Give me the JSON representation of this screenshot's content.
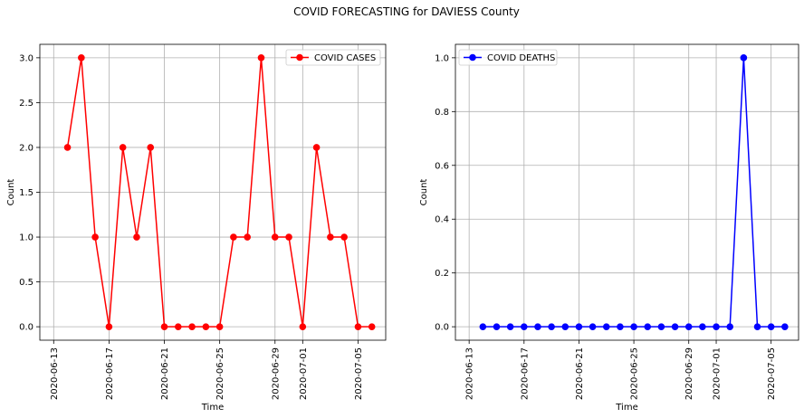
{
  "figure_title": "COVID FORECASTING for DAVIESS County",
  "chart_data": [
    {
      "type": "line",
      "xlabel": "Time",
      "ylabel": "Count",
      "x_tick_labels": [
        "2020-06-13",
        "2020-06-17",
        "2020-06-21",
        "2020-06-25",
        "2020-06-29",
        "2020-07-01",
        "2020-07-05"
      ],
      "y_tick_labels": [
        "0.0",
        "0.5",
        "1.0",
        "1.5",
        "2.0",
        "2.5",
        "3.0"
      ],
      "ylim": [
        -0.15,
        3.15
      ],
      "grid": true,
      "legend_position": "top-right",
      "series": [
        {
          "name": "COVID CASES",
          "color": "#ff0000",
          "x": [
            "2020-06-14",
            "2020-06-15",
            "2020-06-16",
            "2020-06-17",
            "2020-06-18",
            "2020-06-19",
            "2020-06-20",
            "2020-06-21",
            "2020-06-22",
            "2020-06-23",
            "2020-06-24",
            "2020-06-25",
            "2020-06-26",
            "2020-06-27",
            "2020-06-28",
            "2020-06-29",
            "2020-06-30",
            "2020-07-01",
            "2020-07-02",
            "2020-07-03",
            "2020-07-04",
            "2020-07-05",
            "2020-07-06"
          ],
          "values": [
            2,
            3,
            1,
            0,
            2,
            1,
            2,
            0,
            0,
            0,
            0,
            0,
            1,
            1,
            3,
            1,
            1,
            0,
            2,
            1,
            1,
            0,
            0
          ]
        }
      ]
    },
    {
      "type": "line",
      "xlabel": "Time",
      "ylabel": "Count",
      "x_tick_labels": [
        "2020-06-13",
        "2020-06-17",
        "2020-06-21",
        "2020-06-25",
        "2020-06-29",
        "2020-07-01",
        "2020-07-05"
      ],
      "y_tick_labels": [
        "0.0",
        "0.2",
        "0.4",
        "0.6",
        "0.8",
        "1.0"
      ],
      "ylim": [
        -0.05,
        1.05
      ],
      "grid": true,
      "legend_position": "top-left",
      "series": [
        {
          "name": "COVID DEATHS",
          "color": "#0000ff",
          "x": [
            "2020-06-14",
            "2020-06-15",
            "2020-06-16",
            "2020-06-17",
            "2020-06-18",
            "2020-06-19",
            "2020-06-20",
            "2020-06-21",
            "2020-06-22",
            "2020-06-23",
            "2020-06-24",
            "2020-06-25",
            "2020-06-26",
            "2020-06-27",
            "2020-06-28",
            "2020-06-29",
            "2020-06-30",
            "2020-07-01",
            "2020-07-02",
            "2020-07-03",
            "2020-07-04",
            "2020-07-05",
            "2020-07-06"
          ],
          "values": [
            0,
            0,
            0,
            0,
            0,
            0,
            0,
            0,
            0,
            0,
            0,
            0,
            0,
            0,
            0,
            0,
            0,
            0,
            0,
            1,
            0,
            0,
            0
          ]
        }
      ]
    }
  ]
}
